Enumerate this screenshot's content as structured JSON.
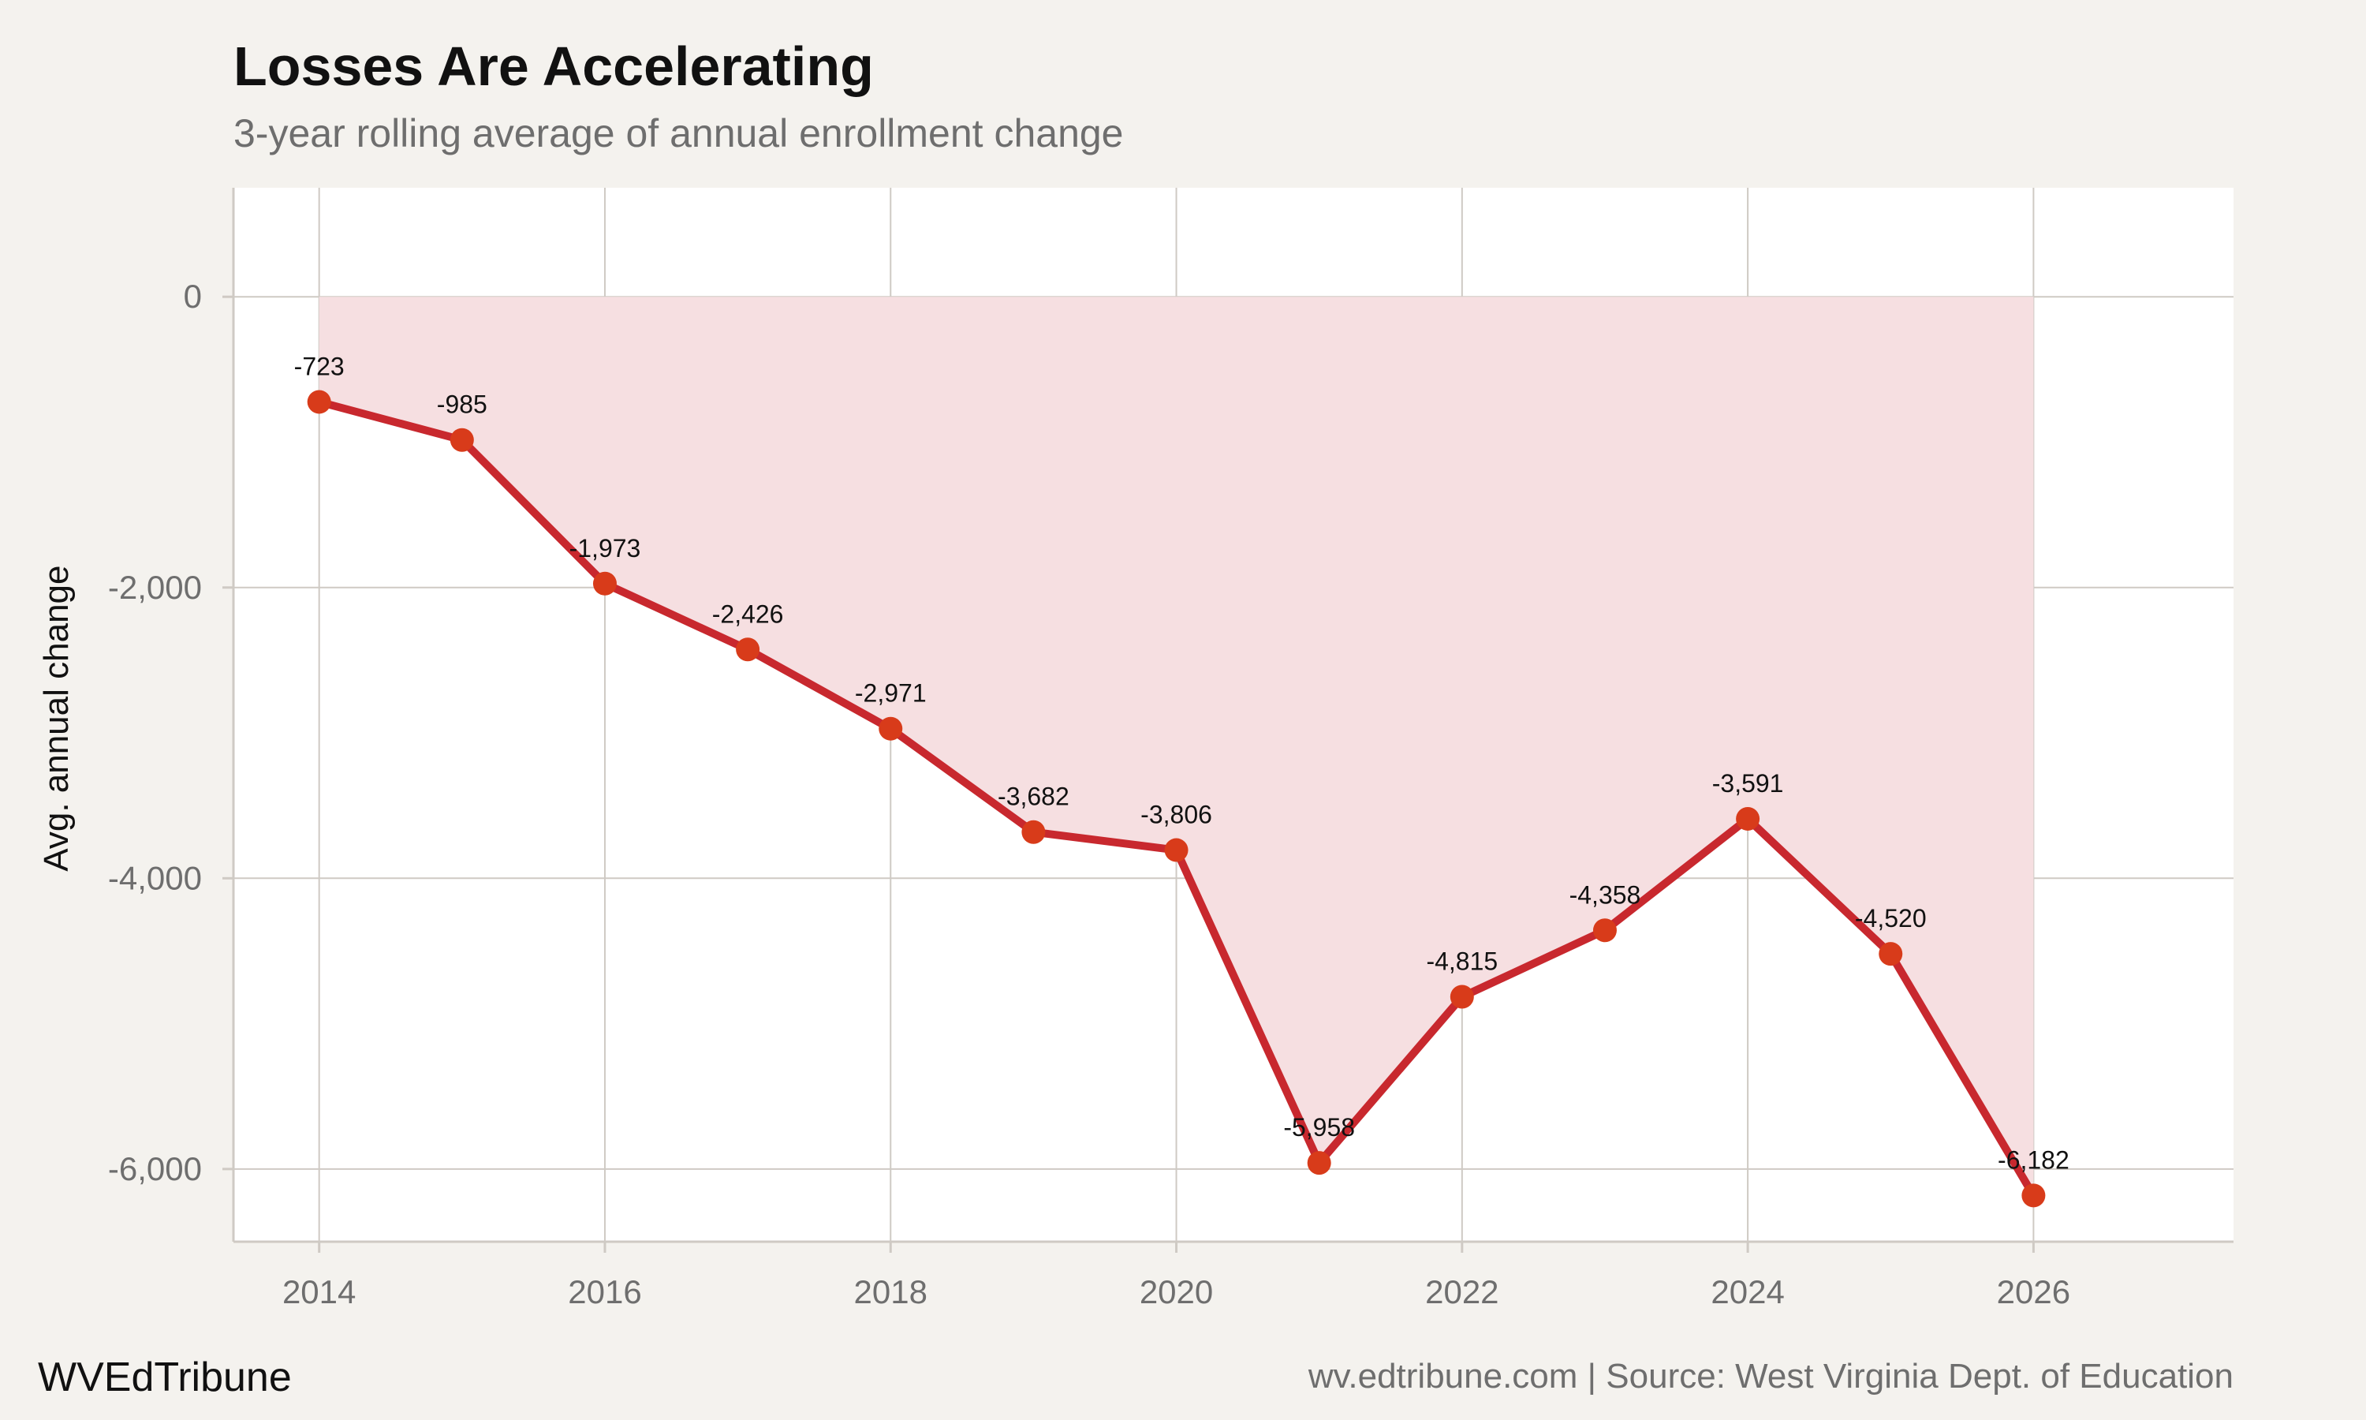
{
  "header": {
    "title": "Losses Are Accelerating",
    "subtitle": "3-year rolling average of annual enrollment change"
  },
  "footer": {
    "brand": "WVEdTribune",
    "source": "wv.edtribune.com | Source: West Virginia Dept. of Education"
  },
  "colors": {
    "background": "#f4f2ee",
    "panel": "#ffffff",
    "grid": "#cfcac4",
    "line": "#c8282e",
    "point": "#d83b1a",
    "area_fill": "#f6dfe1"
  },
  "chart_data": {
    "type": "line",
    "title": "Losses Are Accelerating",
    "subtitle": "3-year rolling average of annual enrollment change",
    "xlabel": "",
    "ylabel": "Avg. annual change",
    "x": [
      2014,
      2015,
      2016,
      2017,
      2018,
      2019,
      2020,
      2021,
      2022,
      2023,
      2024,
      2025,
      2026
    ],
    "values": [
      -723,
      -985,
      -1973,
      -2426,
      -2971,
      -3682,
      -3806,
      -5958,
      -4815,
      -4358,
      -3591,
      -4520,
      -6182
    ],
    "data_labels": [
      "-723",
      "-985",
      "-1,973",
      "-2,426",
      "-2,971",
      "-3,682",
      "-3,806",
      "-5,958",
      "-4,815",
      "-4,358",
      "-3,591",
      "-4,520",
      "-6,182"
    ],
    "x_ticks": [
      2014,
      2016,
      2018,
      2020,
      2022,
      2024,
      2026
    ],
    "x_tick_labels": [
      "2014",
      "2016",
      "2018",
      "2020",
      "2022",
      "2024",
      "2026"
    ],
    "y_ticks": [
      0,
      -2000,
      -4000,
      -6000
    ],
    "y_tick_labels": [
      "0",
      "-2,000",
      "-4,000",
      "-6,000"
    ],
    "xlim": [
      2013.4,
      2027.4
    ],
    "ylim": [
      -6500,
      750
    ],
    "area_fill": true,
    "grid": true,
    "legend": "none"
  }
}
